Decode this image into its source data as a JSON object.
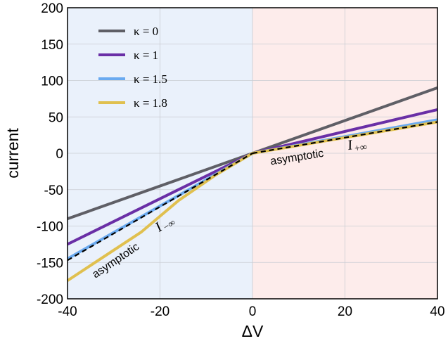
{
  "chart_data": {
    "type": "line",
    "xlabel": "ΔV",
    "ylabel": "current",
    "xlim": [
      -40,
      40
    ],
    "ylim": [
      -200,
      200
    ],
    "xticks": [
      "-40",
      "-20",
      "0",
      "20",
      "40"
    ],
    "yticks": [
      "200",
      "150",
      "100",
      "50",
      "0",
      "-50",
      "-100",
      "-150",
      "-200"
    ],
    "grid": true,
    "legend_position": "top-left",
    "regions": [
      {
        "x": [
          -40,
          0
        ],
        "color": "#eaf1fb"
      },
      {
        "x": [
          0,
          40
        ],
        "color": "#fdeceb"
      }
    ],
    "series": [
      {
        "name": "κ = 0",
        "color": "#5f5f66",
        "points": [
          [
            -40,
            -90
          ],
          [
            0,
            0
          ],
          [
            40,
            90
          ]
        ]
      },
      {
        "name": "κ = 1",
        "color": "#6a2fa6",
        "points": [
          [
            -40,
            -125
          ],
          [
            0,
            0
          ],
          [
            40,
            60
          ]
        ]
      },
      {
        "name": "κ = 1.5",
        "color": "#6aaaf0",
        "points": [
          [
            -40,
            -145
          ],
          [
            0,
            0
          ],
          [
            40,
            46
          ]
        ]
      },
      {
        "name": "κ = 1.8",
        "color": "#e0c04f",
        "points": [
          [
            -40,
            -175
          ],
          [
            -24,
            -108
          ],
          [
            -16,
            -65
          ],
          [
            -8,
            -30
          ],
          [
            0,
            0
          ],
          [
            40,
            43
          ]
        ]
      }
    ],
    "asymptotes": [
      {
        "style": "dashed",
        "color": "#000000",
        "points": [
          [
            -40,
            -147
          ],
          [
            0,
            0
          ]
        ]
      },
      {
        "style": "dashed",
        "color": "#000000",
        "points": [
          [
            0,
            0
          ],
          [
            40,
            43
          ]
        ]
      }
    ],
    "annotations": {
      "pos": {
        "text": "asymptotic",
        "symbol": "I",
        "sub": "+∞",
        "x": 4,
        "y": -16
      },
      "neg": {
        "text": "asymptotic",
        "symbol": "I",
        "sub": "−∞",
        "x": -34,
        "y": -172
      }
    }
  }
}
